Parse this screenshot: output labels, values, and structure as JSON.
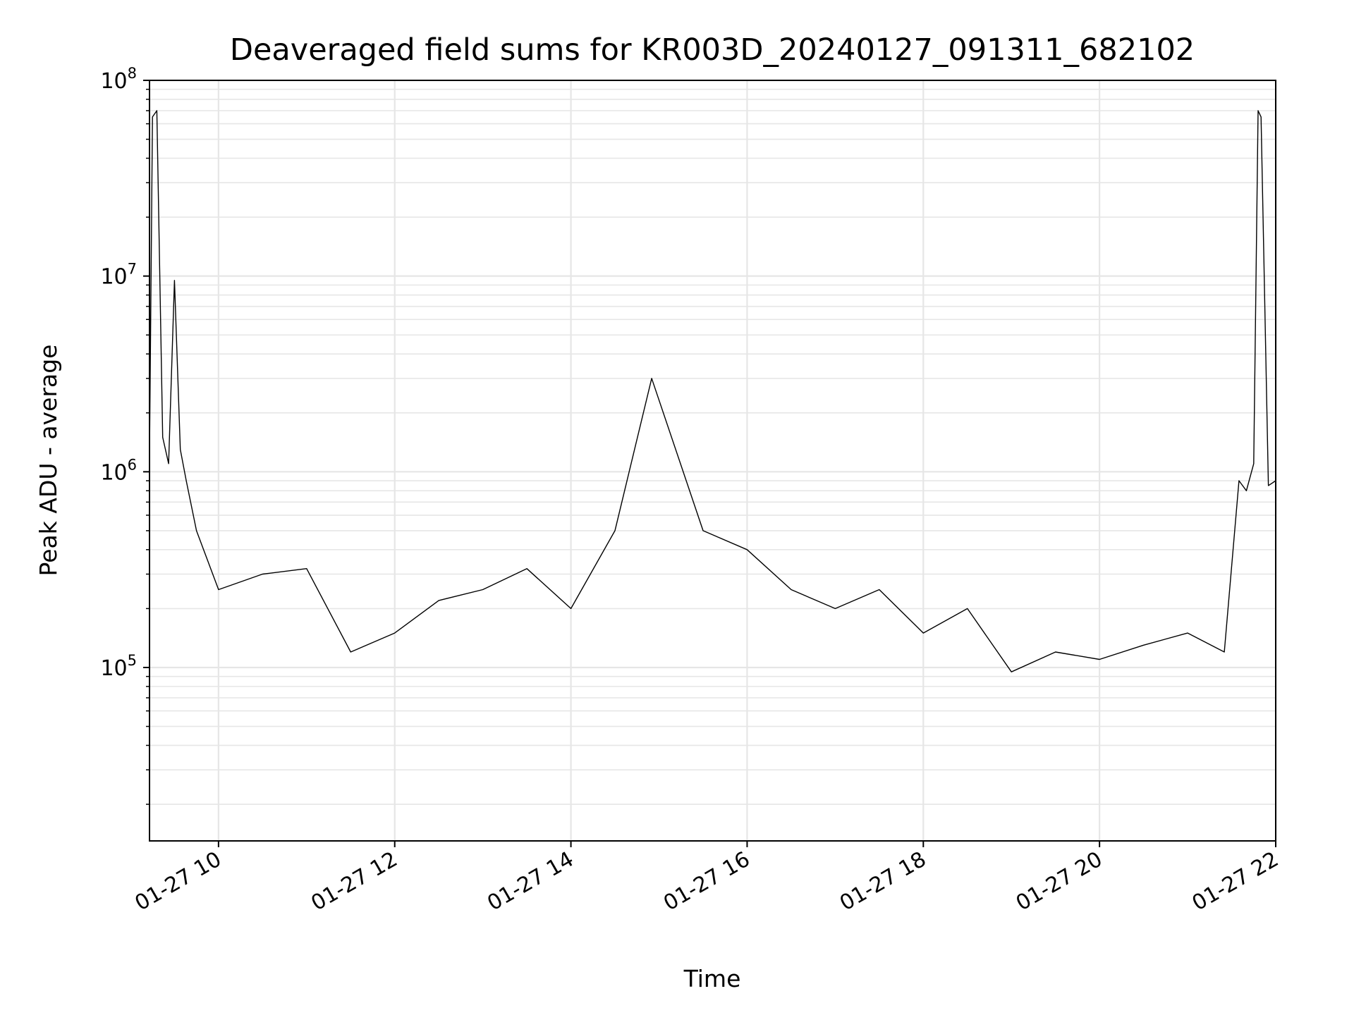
{
  "chart_data": {
    "type": "line",
    "title": "Deaveraged field sums for KR003D_20240127_091311_682102",
    "xlabel": "Time",
    "ylabel": "Peak ADU - average",
    "x_range": [
      "01-27 09:13",
      "01-27 22:00"
    ],
    "y_scale": "log",
    "ylim": [
      13000,
      100000000
    ],
    "grid": true,
    "line_color": "#000000",
    "x_ticks": [
      "01-27 10",
      "01-27 12",
      "01-27 14",
      "01-27 16",
      "01-27 18",
      "01-27 20",
      "01-27 22"
    ],
    "y_ticks": [
      {
        "value": 100000,
        "base": "10",
        "exp": "5"
      },
      {
        "value": 1000000,
        "base": "10",
        "exp": "6"
      },
      {
        "value": 10000000,
        "base": "10",
        "exp": "7"
      },
      {
        "value": 100000000,
        "base": "10",
        "exp": "8"
      }
    ],
    "series": [
      {
        "x": [
          "01-27 09:13",
          "01-27 09:15",
          "01-27 09:18",
          "01-27 09:22",
          "01-27 09:26",
          "01-27 09:30",
          "01-27 09:34",
          "01-27 09:38",
          "01-27 09:45",
          "01-27 10:00",
          "01-27 10:30",
          "01-27 11:00",
          "01-27 11:30",
          "01-27 12:00",
          "01-27 12:30",
          "01-27 13:00",
          "01-27 13:30",
          "01-27 14:00",
          "01-27 14:30",
          "01-27 14:55",
          "01-27 15:30",
          "01-27 16:00",
          "01-27 16:30",
          "01-27 17:00",
          "01-27 17:30",
          "01-27 18:00",
          "01-27 18:30",
          "01-27 19:00",
          "01-27 19:30",
          "01-27 20:00",
          "01-27 20:30",
          "01-27 21:00",
          "01-27 21:25",
          "01-27 21:35",
          "01-27 21:40",
          "01-27 21:45",
          "01-27 21:48",
          "01-27 21:50",
          "01-27 21:55",
          "01-27 22:00"
        ],
        "y": [
          1200000,
          65000000,
          70000000,
          1500000,
          1100000,
          9500000,
          1300000,
          900000,
          500000,
          250000,
          300000,
          320000,
          120000,
          150000,
          220000,
          250000,
          320000,
          200000,
          500000,
          3000000,
          500000,
          400000,
          250000,
          200000,
          250000,
          150000,
          200000,
          95000,
          120000,
          110000,
          130000,
          150000,
          120000,
          900000,
          800000,
          1100000,
          70000000,
          65000000,
          850000,
          900000
        ]
      }
    ]
  }
}
